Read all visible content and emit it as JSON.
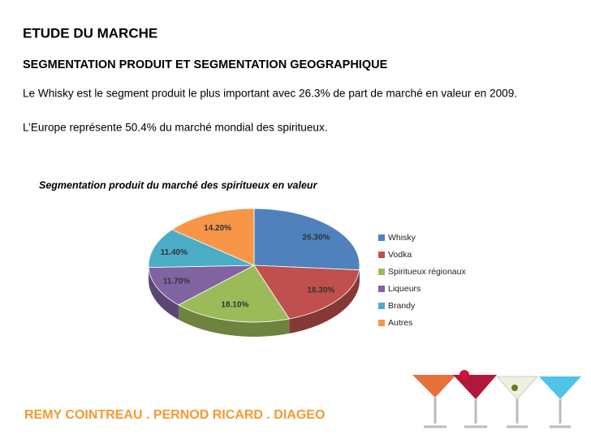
{
  "slide": {
    "title": "ETUDE DU MARCHE",
    "subtitle": "SEGMENTATION PRODUIT ET SEGMENTATION GEOGRAPHIQUE",
    "paragraphs": [
      "Le Whisky est le segment produit le plus important avec 26.3% de part de marché en valeur en 2009.",
      "L’Europe représente 50.4% du marché mondial des spiritueux."
    ],
    "footer": "REMY COINTREAU . PERNOD RICARD . DIAGEO"
  },
  "chart_data": {
    "type": "pie",
    "title": "Segmentation produit du marché des spiritueux en valeur",
    "categories": [
      "Whisky",
      "Vodka",
      "Spiritueux régionaux",
      "Liqueurs",
      "Brandy",
      "Autres"
    ],
    "values": [
      26.3,
      18.3,
      18.1,
      11.7,
      11.4,
      14.2
    ],
    "value_labels": [
      "26.30%",
      "18.30%",
      "18.10%",
      "11.70%",
      "11.40%",
      "14.20%"
    ],
    "colors": [
      "#4f81bd",
      "#c0504d",
      "#9bbb59",
      "#8064a2",
      "#4bacc6",
      "#f79646"
    ],
    "legend": "right"
  }
}
